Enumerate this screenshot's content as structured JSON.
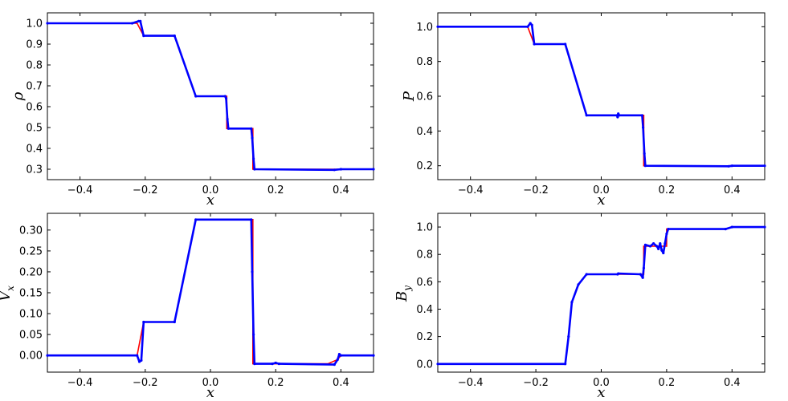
{
  "chart_data": [
    {
      "type": "line",
      "xlabel": "x",
      "ylabel": "ρ",
      "xlim": [
        -0.5,
        0.5
      ],
      "ylim": [
        0.25,
        1.05
      ],
      "xticks": [
        -0.4,
        -0.2,
        0.0,
        0.2,
        0.4
      ],
      "xtick_labels": [
        "−0.4",
        "−0.2",
        "0.0",
        "0.2",
        "0.4"
      ],
      "yticks": [
        0.3,
        0.4,
        0.5,
        0.6,
        0.7,
        0.8,
        0.9,
        1.0
      ],
      "ytick_labels": [
        "0.3",
        "0.4",
        "0.5",
        "0.6",
        "0.7",
        "0.8",
        "0.9",
        "1.0"
      ],
      "series": [
        {
          "color": "#ff0000",
          "style": "line",
          "points": [
            [
              -0.5,
              1.0
            ],
            [
              -0.225,
              1.0
            ],
            [
              -0.205,
              0.94
            ],
            [
              -0.11,
              0.94
            ],
            [
              -0.045,
              0.65
            ],
            [
              0.05,
              0.65
            ],
            [
              0.05,
              0.495
            ],
            [
              0.13,
              0.495
            ],
            [
              0.13,
              0.3
            ],
            [
              0.38,
              0.3
            ],
            [
              0.4,
              0.3
            ],
            [
              0.5,
              0.3
            ]
          ]
        },
        {
          "color": "#0000ff",
          "style": "dots",
          "points": [
            [
              -0.5,
              1.0
            ],
            [
              -0.24,
              1.0
            ],
            [
              -0.22,
              1.01
            ],
            [
              -0.215,
              1.01
            ],
            [
              -0.205,
              0.94
            ],
            [
              -0.11,
              0.94
            ],
            [
              -0.045,
              0.65
            ],
            [
              0.045,
              0.65
            ],
            [
              0.048,
              0.64
            ],
            [
              0.052,
              0.54
            ],
            [
              0.055,
              0.495
            ],
            [
              0.125,
              0.495
            ],
            [
              0.128,
              0.45
            ],
            [
              0.132,
              0.35
            ],
            [
              0.135,
              0.3
            ],
            [
              0.38,
              0.297
            ],
            [
              0.4,
              0.3
            ],
            [
              0.5,
              0.3
            ]
          ]
        }
      ]
    },
    {
      "type": "line",
      "xlabel": "x",
      "ylabel": "P",
      "xlim": [
        -0.5,
        0.5
      ],
      "ylim": [
        0.12,
        1.08
      ],
      "xticks": [
        -0.4,
        -0.2,
        0.0,
        0.2,
        0.4
      ],
      "xtick_labels": [
        "−0.4",
        "−0.2",
        "0.0",
        "0.2",
        "0.4"
      ],
      "yticks": [
        0.2,
        0.4,
        0.6,
        0.8,
        1.0
      ],
      "ytick_labels": [
        "0.2",
        "0.4",
        "0.6",
        "0.8",
        "1.0"
      ],
      "series": [
        {
          "color": "#ff0000",
          "style": "line",
          "points": [
            [
              -0.5,
              1.0
            ],
            [
              -0.225,
              1.0
            ],
            [
              -0.205,
              0.9
            ],
            [
              -0.11,
              0.9
            ],
            [
              -0.045,
              0.49
            ],
            [
              0.13,
              0.49
            ],
            [
              0.13,
              0.2
            ],
            [
              0.39,
              0.197
            ],
            [
              0.4,
              0.2
            ],
            [
              0.5,
              0.2
            ]
          ]
        },
        {
          "color": "#0000ff",
          "style": "dots",
          "points": [
            [
              -0.5,
              1.0
            ],
            [
              -0.225,
              1.0
            ],
            [
              -0.217,
              1.02
            ],
            [
              -0.212,
              1.01
            ],
            [
              -0.205,
              0.9
            ],
            [
              -0.11,
              0.9
            ],
            [
              -0.045,
              0.49
            ],
            [
              0.048,
              0.49
            ],
            [
              0.05,
              0.48
            ],
            [
              0.052,
              0.5
            ],
            [
              0.055,
              0.49
            ],
            [
              0.125,
              0.49
            ],
            [
              0.128,
              0.42
            ],
            [
              0.132,
              0.27
            ],
            [
              0.135,
              0.2
            ],
            [
              0.39,
              0.197
            ],
            [
              0.4,
              0.2
            ],
            [
              0.5,
              0.2
            ]
          ]
        }
      ]
    },
    {
      "type": "line",
      "xlabel": "x",
      "ylabel": "V",
      "ylabel_sub": "x",
      "xlim": [
        -0.5,
        0.5
      ],
      "ylim": [
        -0.04,
        0.34
      ],
      "xticks": [
        -0.4,
        -0.2,
        0.0,
        0.2,
        0.4
      ],
      "xtick_labels": [
        "−0.4",
        "−0.2",
        "0.0",
        "0.2",
        "0.4"
      ],
      "yticks": [
        0.0,
        0.05,
        0.1,
        0.15,
        0.2,
        0.25,
        0.3
      ],
      "ytick_labels": [
        "0.00",
        "0.05",
        "0.10",
        "0.15",
        "0.20",
        "0.25",
        "0.30"
      ],
      "series": [
        {
          "color": "#ff0000",
          "style": "line",
          "points": [
            [
              -0.5,
              0.0
            ],
            [
              -0.225,
              0.0
            ],
            [
              -0.205,
              0.08
            ],
            [
              -0.11,
              0.08
            ],
            [
              -0.045,
              0.325
            ],
            [
              0.13,
              0.325
            ],
            [
              0.13,
              -0.02
            ],
            [
              0.36,
              -0.02
            ],
            [
              0.39,
              -0.01
            ],
            [
              0.4,
              0.0
            ],
            [
              0.5,
              0.0
            ]
          ]
        },
        {
          "color": "#0000ff",
          "style": "dots",
          "points": [
            [
              -0.5,
              0.0
            ],
            [
              -0.225,
              0.0
            ],
            [
              -0.218,
              -0.015
            ],
            [
              -0.212,
              -0.012
            ],
            [
              -0.205,
              0.08
            ],
            [
              -0.11,
              0.08
            ],
            [
              -0.045,
              0.325
            ],
            [
              0.125,
              0.325
            ],
            [
              0.128,
              0.2
            ],
            [
              0.132,
              0.05
            ],
            [
              0.135,
              -0.02
            ],
            [
              0.19,
              -0.02
            ],
            [
              0.2,
              -0.018
            ],
            [
              0.21,
              -0.02
            ],
            [
              0.38,
              -0.022
            ],
            [
              0.39,
              -0.01
            ],
            [
              0.395,
              0.003
            ],
            [
              0.4,
              0.0
            ],
            [
              0.5,
              0.0
            ]
          ]
        }
      ]
    },
    {
      "type": "line",
      "xlabel": "x",
      "ylabel": "B",
      "ylabel_sub": "y",
      "xlim": [
        -0.5,
        0.5
      ],
      "ylim": [
        -0.06,
        1.1
      ],
      "xticks": [
        -0.4,
        -0.2,
        0.0,
        0.2,
        0.4
      ],
      "xtick_labels": [
        "−0.4",
        "−0.2",
        "0.0",
        "0.2",
        "0.4"
      ],
      "yticks": [
        0.0,
        0.2,
        0.4,
        0.6,
        0.8,
        1.0
      ],
      "ytick_labels": [
        "0.0",
        "0.2",
        "0.4",
        "0.6",
        "0.8",
        "1.0"
      ],
      "series": [
        {
          "color": "#ff0000",
          "style": "line",
          "points": [
            [
              -0.5,
              0.0
            ],
            [
              -0.11,
              0.0
            ],
            [
              -0.1,
              0.2
            ],
            [
              -0.09,
              0.45
            ],
            [
              -0.07,
              0.58
            ],
            [
              -0.045,
              0.655
            ],
            [
              0.13,
              0.655
            ],
            [
              0.13,
              0.86
            ],
            [
              0.2,
              0.86
            ],
            [
              0.2,
              0.985
            ],
            [
              0.38,
              0.985
            ],
            [
              0.4,
              1.0
            ],
            [
              0.5,
              1.0
            ]
          ]
        },
        {
          "color": "#0000ff",
          "style": "dots",
          "points": [
            [
              -0.5,
              0.0
            ],
            [
              -0.11,
              0.0
            ],
            [
              -0.1,
              0.2
            ],
            [
              -0.09,
              0.45
            ],
            [
              -0.07,
              0.58
            ],
            [
              -0.045,
              0.655
            ],
            [
              0.05,
              0.655
            ],
            [
              0.052,
              0.66
            ],
            [
              0.12,
              0.655
            ],
            [
              0.127,
              0.63
            ],
            [
              0.13,
              0.7
            ],
            [
              0.135,
              0.87
            ],
            [
              0.15,
              0.86
            ],
            [
              0.16,
              0.88
            ],
            [
              0.17,
              0.86
            ],
            [
              0.175,
              0.84
            ],
            [
              0.18,
              0.88
            ],
            [
              0.185,
              0.83
            ],
            [
              0.19,
              0.81
            ],
            [
              0.195,
              0.88
            ],
            [
              0.2,
              0.95
            ],
            [
              0.205,
              0.985
            ],
            [
              0.38,
              0.985
            ],
            [
              0.4,
              1.0
            ],
            [
              0.5,
              1.0
            ]
          ]
        }
      ]
    }
  ]
}
